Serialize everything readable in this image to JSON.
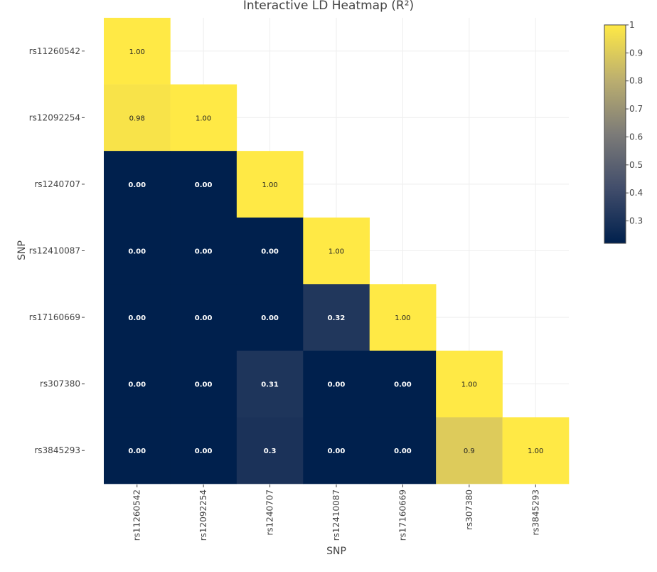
{
  "chart_data": {
    "type": "heatmap",
    "title": "Interactive LD Heatmap (R²)",
    "xlabel": "SNP",
    "ylabel": "SNP",
    "x_categories": [
      "rs11260542",
      "rs12092254",
      "rs1240707",
      "rs12410087",
      "rs17160669",
      "rs307380",
      "rs3845293"
    ],
    "y_categories": [
      "rs11260542",
      "rs12092254",
      "rs1240707",
      "rs12410087",
      "rs17160669",
      "rs307380",
      "rs3845293"
    ],
    "z": [
      [
        1.0,
        null,
        null,
        null,
        null,
        null,
        null
      ],
      [
        0.98,
        1.0,
        null,
        null,
        null,
        null,
        null
      ],
      [
        0.0,
        0.0,
        1.0,
        null,
        null,
        null,
        null
      ],
      [
        0.0,
        0.0,
        0.0,
        1.0,
        null,
        null,
        null
      ],
      [
        0.0,
        0.0,
        0.0,
        0.32,
        1.0,
        null,
        null
      ],
      [
        0.0,
        0.0,
        0.31,
        0.0,
        0.0,
        1.0,
        null
      ],
      [
        0.0,
        0.0,
        0.3,
        0.0,
        0.0,
        0.9,
        1.0
      ]
    ],
    "cell_labels": [
      [
        "1.00",
        "",
        "",
        "",
        "",
        "",
        ""
      ],
      [
        "0.98",
        "1.00",
        "",
        "",
        "",
        "",
        ""
      ],
      [
        "0.00",
        "0.00",
        "1.00",
        "",
        "",
        "",
        ""
      ],
      [
        "0.00",
        "0.00",
        "0.00",
        "1.00",
        "",
        "",
        ""
      ],
      [
        "0.00",
        "0.00",
        "0.00",
        "0.32",
        "1.00",
        "",
        ""
      ],
      [
        "0.00",
        "0.00",
        "0.31",
        "0.00",
        "0.00",
        "1.00",
        ""
      ],
      [
        "0.00",
        "0.00",
        "0.3",
        "0.00",
        "0.00",
        "0.9",
        "1.00"
      ]
    ],
    "colorscale": "cividis",
    "colorscale_stops": [
      "#00204d",
      "#414d6b",
      "#7c7b78",
      "#bcaf6f",
      "#ffe945"
    ],
    "zrange": [
      0.22,
      1.0
    ],
    "colorbar_ticks": [
      "0.3",
      "0.4",
      "0.5",
      "0.6",
      "0.7",
      "0.8",
      "0.9",
      "1"
    ],
    "colorbar_tick_values": [
      0.3,
      0.4,
      0.5,
      0.6,
      0.7,
      0.8,
      0.9,
      1.0
    ],
    "grid": true
  }
}
